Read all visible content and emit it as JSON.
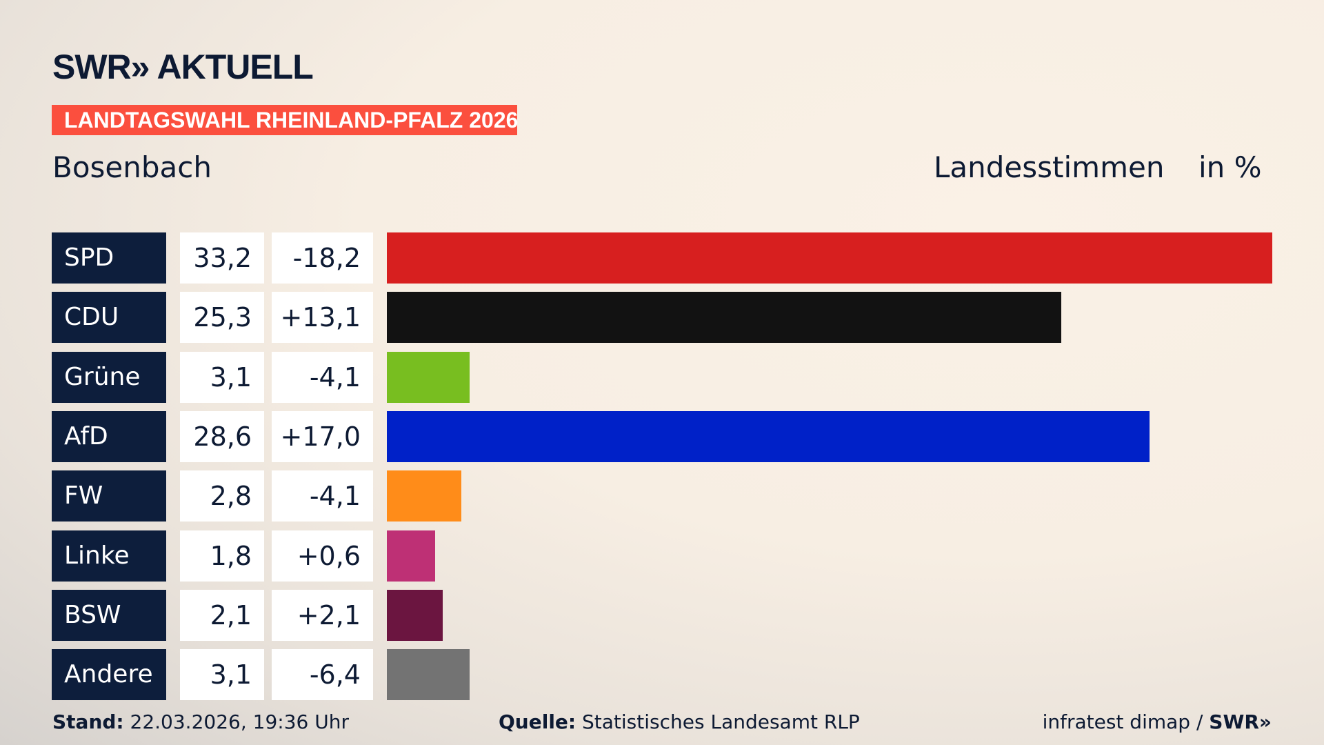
{
  "header": {
    "logo": "SWR» AKTUELL",
    "banner": "LANDTAGSWAHL RHEINLAND-PFALZ 2026",
    "place": "Bosenbach",
    "metric": "Landesstimmen",
    "unit": "in %"
  },
  "chart_data": {
    "type": "bar",
    "orientation": "horizontal",
    "xlim": [
      0,
      33.2
    ],
    "categories": [
      "SPD",
      "CDU",
      "Grüne",
      "AfD",
      "FW",
      "Linke",
      "BSW",
      "Andere"
    ],
    "values": [
      33.2,
      25.3,
      3.1,
      28.6,
      2.8,
      1.8,
      2.1,
      3.1
    ],
    "value_labels": [
      "33,2",
      "25,3",
      "3,1",
      "28,6",
      "2,8",
      "1,8",
      "2,1",
      "3,1"
    ],
    "diff_labels": [
      "-18,2",
      "+13,1",
      "-4,1",
      "+17,0",
      "-4,1",
      "+0,6",
      "+2,1",
      "-6,4"
    ],
    "colors": [
      "#d71f1f",
      "#121212",
      "#78be20",
      "#0021c8",
      "#ff8c19",
      "#be3075",
      "#6b1540",
      "#737373"
    ]
  },
  "footer": {
    "stand_label": "Stand:",
    "stand_value": " 22.03.2026, 19:36 Uhr",
    "source_label": "Quelle:",
    "source_value": " Statistisches Landesamt RLP",
    "credit": "infratest dimap / ",
    "credit_logo": "SWR»"
  }
}
